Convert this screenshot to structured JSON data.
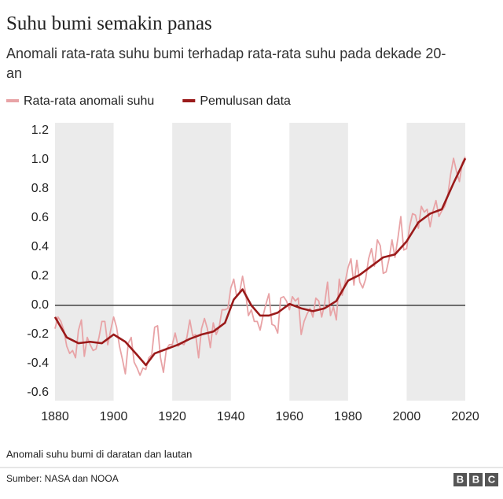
{
  "chart_data": {
    "type": "line",
    "title": "Suhu bumi semakin panas",
    "subtitle": "Anomali rata-rata suhu bumi terhadap rata-rata suhu pada dekade 20-an",
    "note": "Anomali suhu bumi di daratan dan lautan",
    "source": "Sumber: NASA dan NOOA",
    "x": [
      1880,
      1881,
      1882,
      1883,
      1884,
      1885,
      1886,
      1887,
      1888,
      1889,
      1890,
      1891,
      1892,
      1893,
      1894,
      1895,
      1896,
      1897,
      1898,
      1899,
      1900,
      1901,
      1902,
      1903,
      1904,
      1905,
      1906,
      1907,
      1908,
      1909,
      1910,
      1911,
      1912,
      1913,
      1914,
      1915,
      1916,
      1917,
      1918,
      1919,
      1920,
      1921,
      1922,
      1923,
      1924,
      1925,
      1926,
      1927,
      1928,
      1929,
      1930,
      1931,
      1932,
      1933,
      1934,
      1935,
      1936,
      1937,
      1938,
      1939,
      1940,
      1941,
      1942,
      1943,
      1944,
      1945,
      1946,
      1947,
      1948,
      1949,
      1950,
      1951,
      1952,
      1953,
      1954,
      1955,
      1956,
      1957,
      1958,
      1959,
      1960,
      1961,
      1962,
      1963,
      1964,
      1965,
      1966,
      1967,
      1968,
      1969,
      1970,
      1971,
      1972,
      1973,
      1974,
      1975,
      1976,
      1977,
      1978,
      1979,
      1980,
      1981,
      1982,
      1983,
      1984,
      1985,
      1986,
      1987,
      1988,
      1989,
      1990,
      1991,
      1992,
      1993,
      1994,
      1995,
      1996,
      1997,
      1998,
      1999,
      2000,
      2001,
      2002,
      2003,
      2004,
      2005,
      2006,
      2007,
      2008,
      2009,
      2010,
      2011,
      2012,
      2013,
      2014,
      2015,
      2016,
      2017,
      2018,
      2019,
      2020
    ],
    "series": [
      {
        "name": "Rata-rata anomali suhu",
        "color": "#e8a3a6",
        "values": [
          -0.16,
          -0.08,
          -0.11,
          -0.17,
          -0.28,
          -0.33,
          -0.31,
          -0.36,
          -0.17,
          -0.1,
          -0.35,
          -0.22,
          -0.27,
          -0.31,
          -0.3,
          -0.22,
          -0.11,
          -0.11,
          -0.27,
          -0.17,
          -0.08,
          -0.15,
          -0.28,
          -0.37,
          -0.47,
          -0.26,
          -0.22,
          -0.39,
          -0.43,
          -0.48,
          -0.43,
          -0.44,
          -0.36,
          -0.34,
          -0.15,
          -0.14,
          -0.36,
          -0.46,
          -0.3,
          -0.27,
          -0.27,
          -0.19,
          -0.28,
          -0.26,
          -0.27,
          -0.22,
          -0.1,
          -0.21,
          -0.2,
          -0.36,
          -0.16,
          -0.09,
          -0.16,
          -0.29,
          -0.12,
          -0.2,
          -0.15,
          -0.03,
          -0.03,
          -0.02,
          0.12,
          0.18,
          0.06,
          0.09,
          0.2,
          0.09,
          -0.07,
          -0.03,
          -0.11,
          -0.11,
          -0.17,
          -0.07,
          0.01,
          0.08,
          -0.13,
          -0.14,
          -0.19,
          0.05,
          0.06,
          0.03,
          -0.03,
          0.06,
          0.03,
          0.05,
          -0.2,
          -0.11,
          -0.06,
          -0.02,
          -0.08,
          0.05,
          0.03,
          -0.08,
          0.01,
          0.16,
          -0.07,
          -0.01,
          -0.1,
          0.18,
          0.07,
          0.16,
          0.26,
          0.32,
          0.14,
          0.31,
          0.16,
          0.12,
          0.18,
          0.32,
          0.39,
          0.27,
          0.45,
          0.41,
          0.22,
          0.23,
          0.32,
          0.45,
          0.33,
          0.46,
          0.61,
          0.38,
          0.39,
          0.54,
          0.63,
          0.62,
          0.53,
          0.68,
          0.64,
          0.66,
          0.54,
          0.65,
          0.72,
          0.61,
          0.65,
          0.68,
          0.75,
          0.9,
          1.01,
          0.92,
          0.85,
          0.98,
          1.02
        ]
      },
      {
        "name": "Pemulusan data",
        "color": "#9a1a1a",
        "x": [
          1880,
          1884,
          1888,
          1892,
          1896,
          1900,
          1904,
          1908,
          1911,
          1914,
          1918,
          1922,
          1926,
          1930,
          1934,
          1938,
          1941,
          1944,
          1947,
          1950,
          1953,
          1956,
          1960,
          1964,
          1968,
          1972,
          1976,
          1980,
          1984,
          1988,
          1992,
          1996,
          2000,
          2004,
          2008,
          2012,
          2016,
          2020
        ],
        "values": [
          -0.08,
          -0.22,
          -0.26,
          -0.25,
          -0.26,
          -0.2,
          -0.25,
          -0.34,
          -0.41,
          -0.33,
          -0.3,
          -0.27,
          -0.23,
          -0.2,
          -0.18,
          -0.12,
          0.04,
          0.11,
          0.0,
          -0.07,
          -0.07,
          -0.05,
          0.01,
          -0.02,
          -0.04,
          -0.02,
          0.03,
          0.17,
          0.21,
          0.27,
          0.33,
          0.35,
          0.44,
          0.57,
          0.63,
          0.66,
          0.84,
          1.01
        ]
      }
    ],
    "xlim": [
      1880,
      2020
    ],
    "xticks": [
      1880,
      1900,
      1920,
      1940,
      1960,
      1980,
      2000,
      2020
    ],
    "ylim": [
      -0.6,
      1.2
    ],
    "yticks": [
      1.2,
      {
        "value": 1,
        "label": "1.0"
      },
      0.8,
      0.6,
      0.4,
      0.2,
      {
        "value": 0,
        "label": "0.0"
      },
      -0.2,
      -0.4,
      -0.6
    ],
    "bands": true
  }
}
